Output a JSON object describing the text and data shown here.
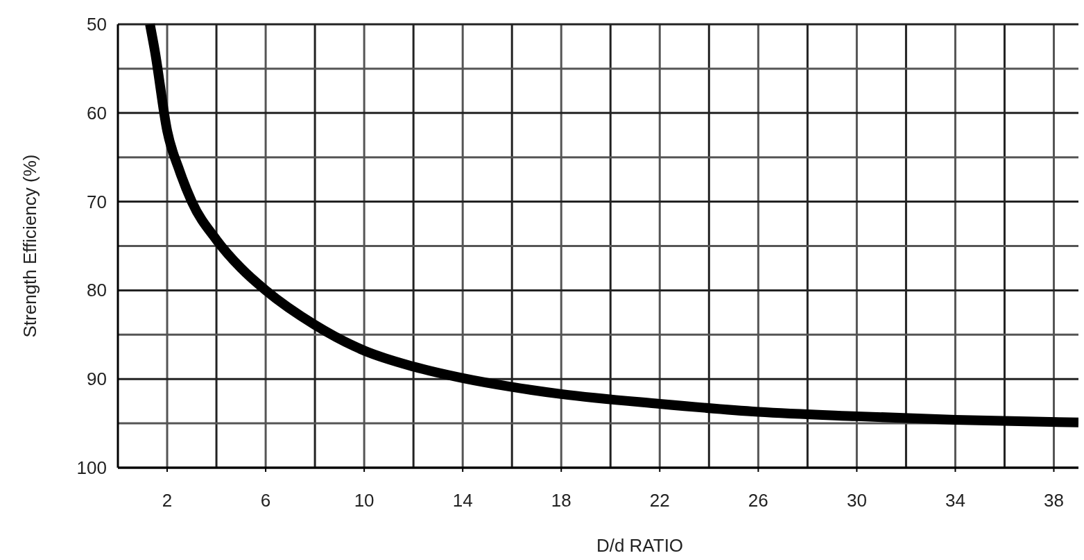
{
  "chart_data": {
    "type": "line",
    "xlabel": "D/d RATIO",
    "ylabel": "Strength Efficiency (%)",
    "xlim": [
      0,
      39
    ],
    "ylim": [
      100,
      50
    ],
    "xticks": [
      2,
      6,
      10,
      14,
      18,
      22,
      26,
      30,
      34,
      38
    ],
    "yticks": [
      50,
      {
        "value": 55,
        "label": null
      },
      60,
      {
        "value": 65,
        "label": null
      },
      70,
      {
        "value": 75,
        "label": null
      },
      80,
      {
        "value": 85,
        "label": null
      },
      90,
      {
        "value": 95,
        "label": null
      },
      100
    ],
    "grid": true,
    "line_style": "solid",
    "series": [
      {
        "color": "#000000",
        "x": [
          1.3,
          1.5,
          2,
          2.5,
          3,
          4,
          5,
          6,
          8,
          10,
          12,
          14,
          16,
          18,
          22,
          26,
          30,
          34,
          39
        ],
        "values": [
          50,
          53,
          62,
          66.5,
          70,
          74.3,
          77.5,
          80,
          83.9,
          86.8,
          88.6,
          89.9,
          90.9,
          91.7,
          92.8,
          93.7,
          94.2,
          94.6,
          94.9
        ]
      }
    ]
  }
}
